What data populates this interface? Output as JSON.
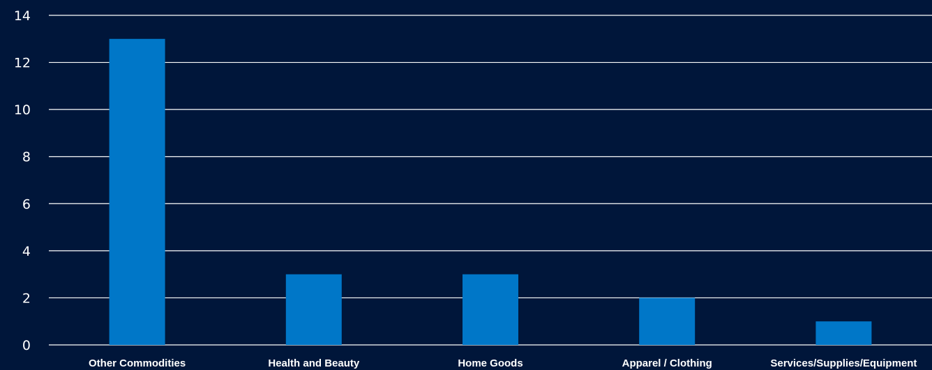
{
  "chart_data": {
    "type": "bar",
    "categories": [
      "Other Commodities",
      "Health and Beauty",
      "Home Goods",
      "Apparel / Clothing",
      "Services/Supplies/Equipment"
    ],
    "values": [
      13,
      3,
      3,
      2,
      1
    ],
    "title": "",
    "xlabel": "",
    "ylabel": "",
    "ylim": [
      0,
      14
    ],
    "yticks": [
      0,
      2,
      4,
      6,
      8,
      10,
      12,
      14
    ],
    "grid": true,
    "legend": "none",
    "colors": {
      "background": "#00163a",
      "bar": "#0077c8",
      "grid": "#ffffff",
      "text": "#ffffff"
    }
  }
}
